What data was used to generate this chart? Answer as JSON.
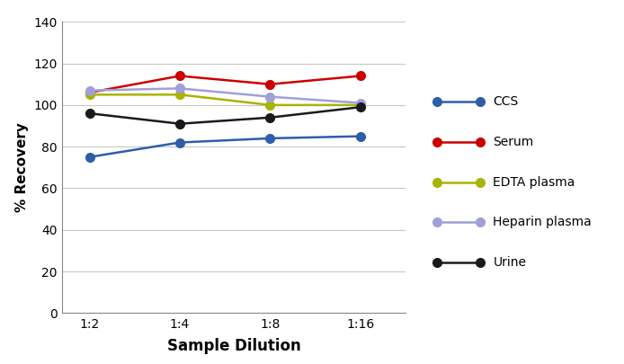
{
  "x_labels": [
    "1:2",
    "1:4",
    "1:8",
    "1:16"
  ],
  "x_positions": [
    0,
    1,
    2,
    3
  ],
  "series": {
    "CCS": {
      "values": [
        75,
        82,
        84,
        85
      ],
      "color": "#2e5ea8",
      "marker": "o"
    },
    "Serum": {
      "values": [
        106,
        114,
        110,
        114
      ],
      "color": "#cc0000",
      "marker": "o"
    },
    "EDTA plasma": {
      "values": [
        105,
        105,
        100,
        100
      ],
      "color": "#a8b400",
      "marker": "o"
    },
    "Heparin plasma": {
      "values": [
        107,
        108,
        104,
        101
      ],
      "color": "#a0a0d8",
      "marker": "o"
    },
    "Urine": {
      "values": [
        96,
        91,
        94,
        99
      ],
      "color": "#1a1a1a",
      "marker": "o"
    }
  },
  "ylabel": "% Recovery",
  "xlabel": "Sample Dilution",
  "ylim": [
    0,
    140
  ],
  "yticks": [
    0,
    20,
    40,
    60,
    80,
    100,
    120,
    140
  ],
  "legend_order": [
    "CCS",
    "Serum",
    "EDTA plasma",
    "Heparin plasma",
    "Urine"
  ],
  "background_color": "#ffffff",
  "grid_color": "#c8c8c8",
  "figsize": [
    6.94,
    4.05
  ],
  "dpi": 100
}
